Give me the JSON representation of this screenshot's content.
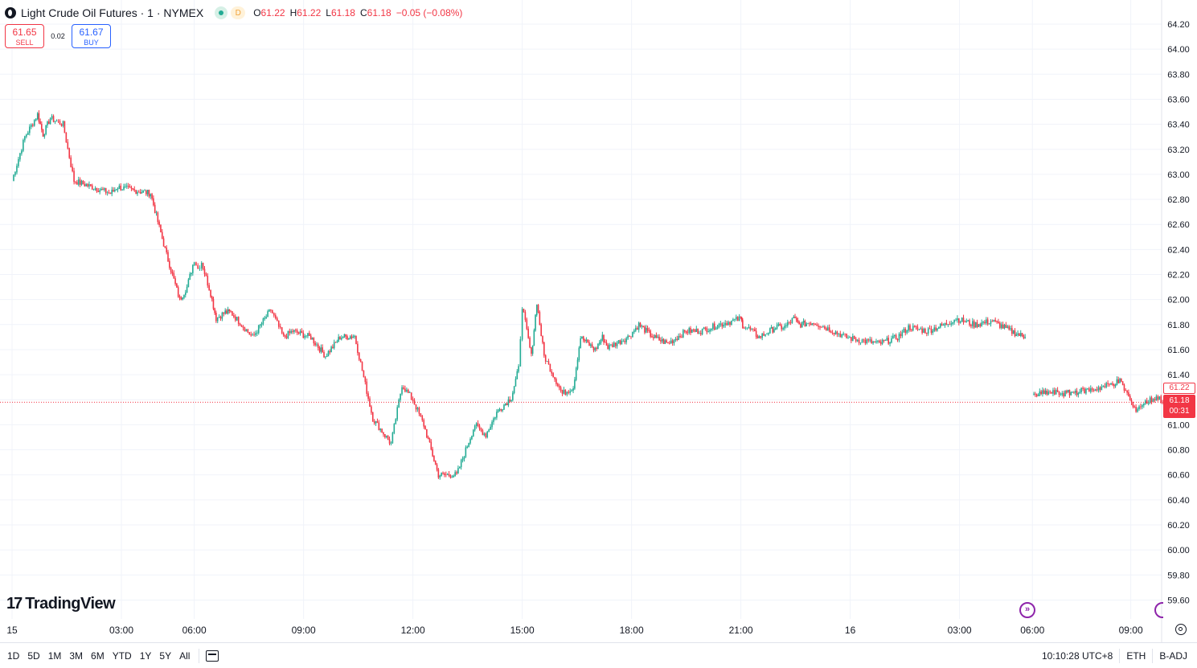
{
  "legend": {
    "symbol_title": "Light Crude Oil Futures · 1 · NYMEX",
    "delay_badge": "D",
    "open_label": "O",
    "open": "61.22",
    "high_label": "H",
    "high": "61.22",
    "low_label": "L",
    "low": "61.18",
    "close_label": "C",
    "close": "61.18",
    "change": "−0.05 (−0.08%)"
  },
  "trade": {
    "sell_price": "61.65",
    "sell_label": "SELL",
    "spread": "0.02",
    "buy_price": "61.67",
    "buy_label": "BUY"
  },
  "brand": {
    "logo": "17",
    "name": "TradingView"
  },
  "price_tags": {
    "high": "61.22",
    "last": "61.18",
    "countdown": "00:31"
  },
  "bottom_bar": {
    "ranges": [
      "1D",
      "5D",
      "1M",
      "3M",
      "6M",
      "YTD",
      "1Y",
      "5Y",
      "All"
    ],
    "time": "10:10:28 UTC+8",
    "session": "ETH",
    "adjustment": "B-ADJ"
  },
  "colors": {
    "up": "#22ab94",
    "down": "#f23645",
    "grid": "#f0f3fa",
    "text": "#131722",
    "accent": "#2962ff",
    "goto": "#8e24aa"
  },
  "chart_data": {
    "type": "line",
    "title": "Light Crude Oil Futures · 1 · NYMEX",
    "xlabel": "",
    "ylabel": "",
    "ylim": [
      59.5,
      64.3
    ],
    "grid": true,
    "legend_placement": "top-left",
    "last_price": 61.18,
    "y_ticks": [
      "64.20",
      "64.00",
      "63.80",
      "63.60",
      "63.40",
      "63.20",
      "63.00",
      "62.80",
      "62.60",
      "62.40",
      "62.20",
      "62.00",
      "61.80",
      "61.60",
      "61.40",
      "61.20",
      "61.00",
      "60.80",
      "60.60",
      "60.40",
      "60.20",
      "60.00",
      "59.80",
      "59.60"
    ],
    "x_ticks": [
      {
        "label": "15",
        "hour": 0
      },
      {
        "label": "03:00",
        "hour": 3
      },
      {
        "label": "06:00",
        "hour": 5
      },
      {
        "label": "09:00",
        "hour": 8
      },
      {
        "label": "12:00",
        "hour": 11
      },
      {
        "label": "15:00",
        "hour": 14
      },
      {
        "label": "18:00",
        "hour": 17
      },
      {
        "label": "21:00",
        "hour": 20
      },
      {
        "label": "16",
        "hour": 23
      },
      {
        "label": "03:00",
        "hour": 26
      },
      {
        "label": "06:00",
        "hour": 28
      },
      {
        "label": "09:00",
        "hour": 30.7
      }
    ],
    "series": [
      {
        "segments": [
          {
            "x": [
              0.0,
              0.35,
              0.7,
              0.85,
              1.05,
              1.4,
              1.7,
              2.2,
              2.7,
              2.9,
              3.4,
              3.8,
              4.2,
              4.6,
              4.8,
              5.0,
              5.1,
              5.2,
              5.45,
              5.6,
              5.85,
              6.0,
              6.6,
              7.1,
              7.45,
              7.7,
              8.2,
              8.6,
              9.0,
              9.4,
              9.9,
              10.4,
              10.7,
              11.0,
              11.3,
              11.7,
              12.2,
              12.7,
              13.0,
              13.3,
              13.7,
              13.9,
              14.0,
              14.25,
              14.4,
              14.6,
              15.1,
              15.4,
              15.6,
              16.0,
              16.2,
              16.35,
              16.9,
              17.2,
              17.6,
              18.0,
              18.5,
              18.9,
              19.4,
              20.0,
              20.05,
              20.3,
              20.5,
              20.8,
              20.95,
              21.2,
              21.45,
              21.6,
              22.0,
              22.3,
              22.9,
              23.2,
              23.8,
              24.3,
              24.6,
              25.1,
              25.6,
              25.9,
              26.4,
              26.9,
              27.4,
              27.8
            ],
            "values": [
              62.95,
              63.3,
              63.48,
              63.32,
              63.45,
              63.4,
              62.95,
              62.9,
              62.85,
              62.9,
              62.87,
              62.85,
              62.4,
              62.0,
              62.1,
              62.32,
              62.25,
              62.3,
              62.05,
              61.85,
              61.9,
              61.9,
              61.7,
              61.92,
              61.7,
              61.75,
              61.7,
              61.55,
              61.7,
              61.71,
              61.05,
              60.85,
              61.32,
              61.2,
              61.0,
              60.6,
              60.6,
              61.0,
              60.92,
              61.1,
              61.22,
              61.45,
              61.95,
              61.55,
              61.98,
              61.55,
              61.25,
              61.3,
              61.7,
              61.6,
              61.7,
              61.62,
              61.7,
              61.8,
              61.7,
              61.65,
              61.75,
              61.75,
              61.8,
              61.85,
              61.8,
              61.75,
              61.7,
              61.75,
              61.78,
              61.78,
              61.85,
              61.8,
              61.82,
              61.78,
              61.7,
              61.68,
              61.65,
              61.7,
              61.78,
              61.75,
              61.8,
              61.85,
              61.8,
              61.83,
              61.75,
              61.7
            ]
          },
          {
            "x": [
              28.0,
              28.4,
              28.9,
              29.3,
              29.6,
              29.9,
              30.2,
              30.4,
              30.6,
              30.8,
              31.1,
              31.4,
              31.7
            ],
            "values": [
              61.23,
              61.26,
              61.25,
              61.27,
              61.28,
              61.3,
              61.33,
              61.35,
              61.25,
              61.12,
              61.18,
              61.22,
              61.18
            ]
          }
        ]
      }
    ]
  }
}
